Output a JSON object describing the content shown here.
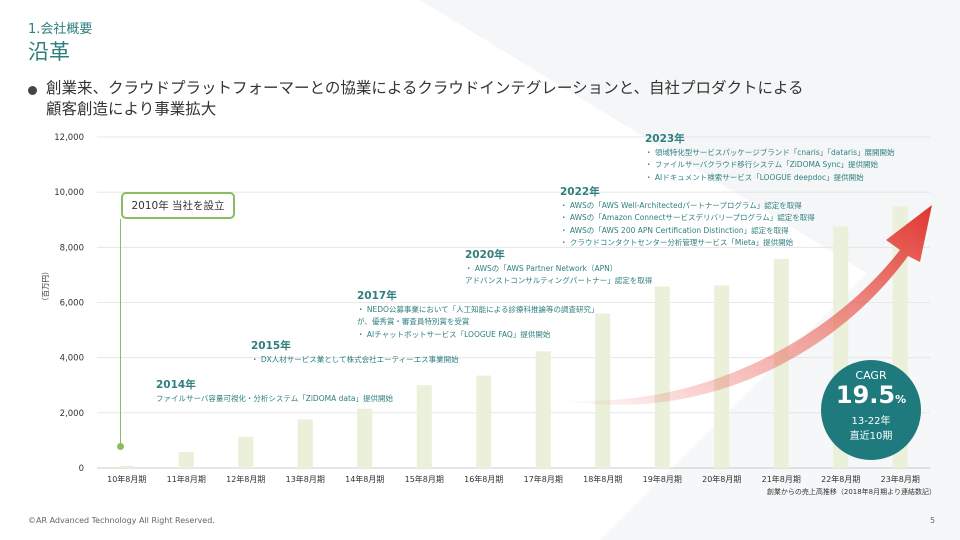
{
  "header": {
    "section": "1.会社概要",
    "title": "沿革",
    "bullet_line1": "創業来、クラウドプラットフォーマーとの協業によるクラウドインテグレーションと、自社プロダクトによる",
    "bullet_line2": "顧客創造により事業拡大"
  },
  "colors": {
    "accent": "#2f7f7f",
    "bar": "#eaf0d9",
    "cagr": "#1f7a7d",
    "arrow": "#e8423c",
    "box_border": "#8cbc62"
  },
  "chart_data": {
    "type": "bar",
    "ylabel": "（百万円）",
    "ylim": [
      0,
      12000
    ],
    "yticks": [
      "0",
      "2,000",
      "4,000",
      "6,000",
      "8,000",
      "10,000",
      "12,000"
    ],
    "ytick_values": [
      0,
      2000,
      4000,
      6000,
      8000,
      10000,
      12000
    ],
    "grid": true,
    "categories": [
      "10年8月期",
      "11年8月期",
      "12年8月期",
      "13年8月期",
      "14年8月期",
      "15年8月期",
      "16年8月期",
      "17年8月期",
      "18年8月期",
      "19年8月期",
      "20年8月期",
      "21年8月期",
      "22年8月期",
      "23年8月期"
    ],
    "values": [
      80,
      580,
      1130,
      1760,
      2150,
      3000,
      3350,
      4230,
      5600,
      6580,
      6620,
      7580,
      8760,
      9480
    ],
    "note": "創業からの売上高推移（2018年8月期より連結数記）"
  },
  "establish_label": "2010年 当社を設立",
  "milestones": [
    {
      "year": "2014年",
      "items": [
        "ファイルサーバ容量可視化・分析システム「ZiDOMA data」提供開始"
      ]
    },
    {
      "year": "2015年",
      "items": [
        "・ DX人材サービス業として株式会社エーティーエス事業開始"
      ]
    },
    {
      "year": "2017年",
      "items": [
        "・ NEDO公募事業において「人工知能による診療科推論等の調査研究」",
        "   が、優秀賞・審査員特別賞を受賞",
        "・ AIチャットボットサービス「LOOGUE FAQ」提供開始"
      ]
    },
    {
      "year": "2020年",
      "items": [
        "・ AWSの「AWS Partner Network（APN）",
        "   アドバンストコンサルティングパートナー」認定を取得"
      ]
    },
    {
      "year": "2022年",
      "items": [
        "・ AWSの「AWS Well-Architectedパートナープログラム」認定を取得",
        "・ AWSの「Amazon Connectサービスデリバリープログラム」認定を取得",
        "・ AWSの「AWS 200 APN Certification Distinction」認定を取得",
        "・ クラウドコンタクトセンター分析管理サービス「Mieta」提供開始"
      ]
    },
    {
      "year": "2023年",
      "items": [
        "・ 領域特化型サービスパッケージブランド「cnaris」「dataris」展開開始",
        "・ ファイルサーバクラウド移行システム「ZiDOMA Sync」提供開始",
        "・ AIドキュメント検索サービス「LOOGUE deepdoc」提供開始"
      ]
    }
  ],
  "cagr": {
    "label": "CAGR",
    "value": "19.5",
    "unit": "%",
    "period": "13-22年",
    "note": "直近10期"
  },
  "footer": {
    "copyright": "©AR Advanced Technology All Right Reserved.",
    "page": "5"
  }
}
